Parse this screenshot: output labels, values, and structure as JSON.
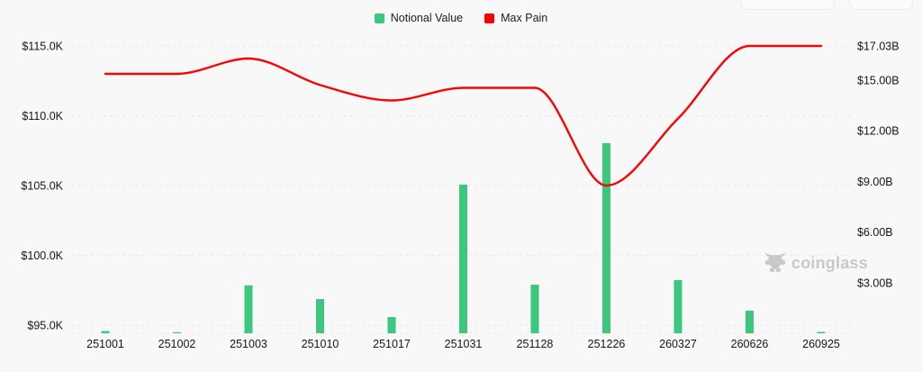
{
  "legend": [
    {
      "label": "Notional Value",
      "color": "#3dc67e"
    },
    {
      "label": "Max Pain",
      "color": "#f70505"
    }
  ],
  "watermark": {
    "text": "coinglass",
    "icon": "bull-logo",
    "color": "#c9c9c9"
  },
  "colors": {
    "background": "#f8f8f8",
    "gridline": "#e9e9e9",
    "axis_text": "#161616",
    "bar": "#3dc67e",
    "line": "#f70505"
  },
  "chart_data": {
    "type": "combo",
    "categories": [
      "251001",
      "251002",
      "251003",
      "251010",
      "251017",
      "251031",
      "251128",
      "251226",
      "260327",
      "260626",
      "260925"
    ],
    "series": [
      {
        "name": "Notional Value",
        "type": "bar",
        "axis": "right",
        "unit": "$B",
        "color": "#3dc67e",
        "values": [
          0.13,
          0.06,
          2.84,
          2.03,
          0.96,
          8.81,
          2.88,
          11.27,
          3.15,
          1.34,
          0.08
        ]
      },
      {
        "name": "Max Pain",
        "type": "line",
        "axis": "left",
        "unit": "$K",
        "color": "#f70505",
        "values": [
          113.0,
          113.0,
          114.1,
          112.2,
          111.1,
          112.0,
          112.0,
          105.0,
          109.8,
          115.0,
          115.0
        ]
      }
    ],
    "left_axis": {
      "tick_labels": [
        "$115.0K",
        "$110.0K",
        "$105.0K",
        "$100.0K",
        "$95.0K"
      ],
      "tick_values": [
        115,
        110,
        105,
        100,
        95
      ],
      "min": 94.4,
      "max": 115.1
    },
    "right_axis": {
      "tick_labels": [
        "$17.03B",
        "$15.00B",
        "$12.00B",
        "$9.00B",
        "$6.00B",
        "$3.00B"
      ],
      "tick_values": [
        17.03,
        15,
        12,
        9,
        6,
        3
      ],
      "min": 0,
      "max": 17.03
    },
    "grid": true,
    "legend_position": "top-center"
  }
}
